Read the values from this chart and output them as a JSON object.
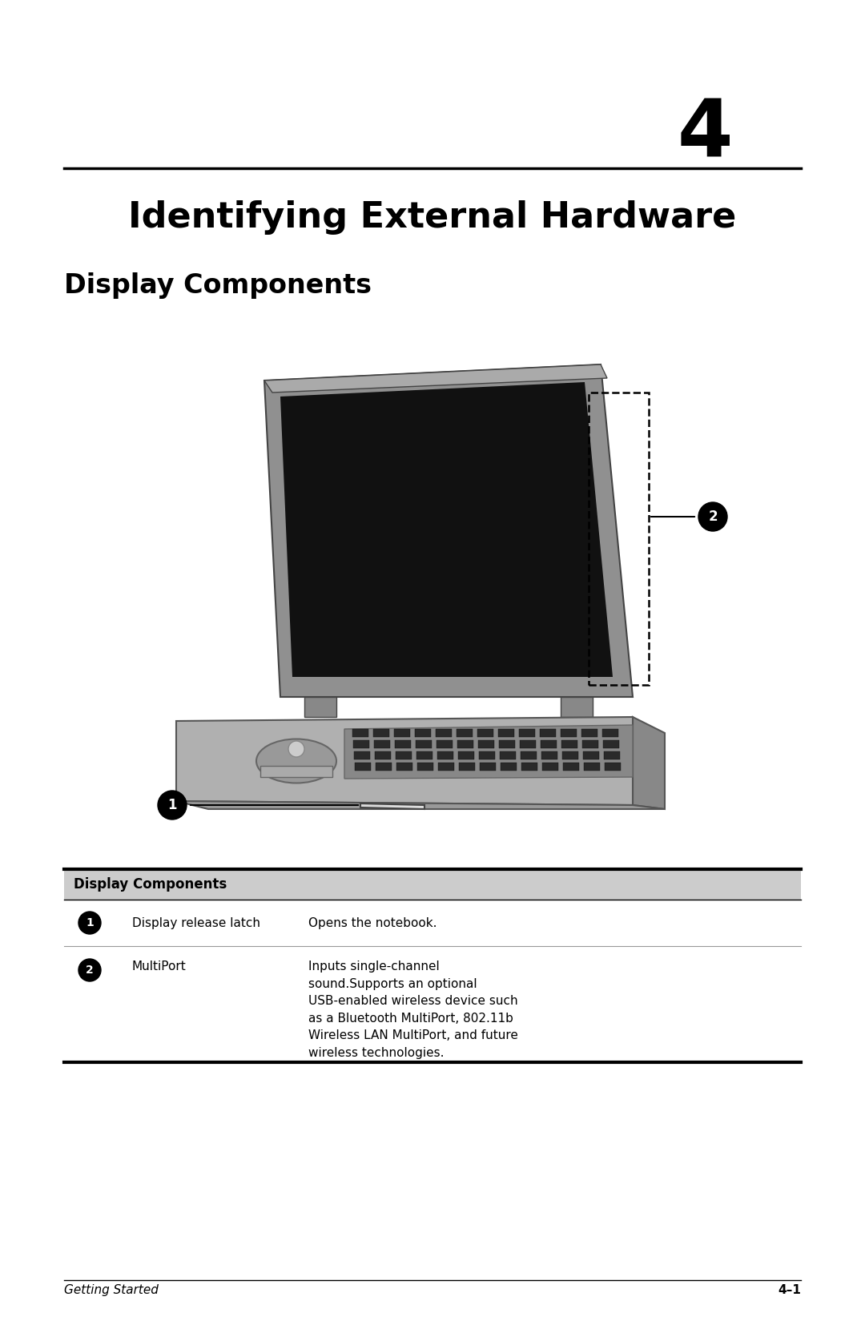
{
  "chapter_number": "4",
  "chapter_title": "Identifying External Hardware",
  "section_title": "Display Components",
  "bg_color": "#ffffff",
  "chapter_num_fontsize": 72,
  "chapter_title_fontsize": 32,
  "section_title_fontsize": 24,
  "table_header": "Display Components",
  "table_rows": [
    {
      "num": "1",
      "name": "Display release latch",
      "description": "Opens the notebook."
    },
    {
      "num": "2",
      "name": "MultiPort",
      "description": "Inputs single-channel\nsound.Supports an optional\nUSB-enabled wireless device such\nas a Bluetooth MultiPort, 802.11b\nWireless LAN MultiPort, and future\nwireless technologies."
    }
  ],
  "footer_left": "Getting Started",
  "footer_right": "4–1",
  "line_color": "#000000",
  "table_header_bg": "#cccccc",
  "bullet_color": "#000000",
  "text_color": "#000000"
}
